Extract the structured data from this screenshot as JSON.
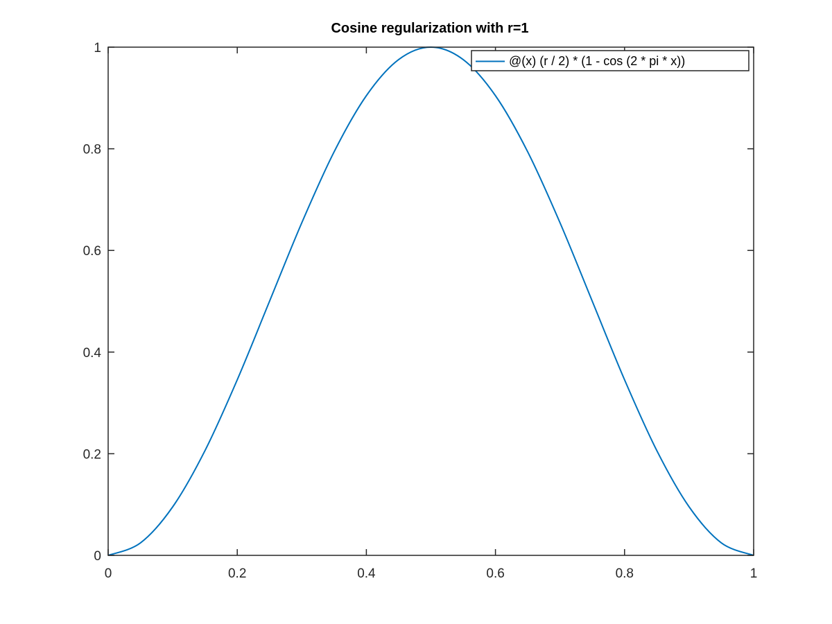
{
  "chart_data": {
    "type": "line",
    "title": "Cosine regularization with r=1",
    "xlabel": "",
    "ylabel": "",
    "xlim": [
      0,
      1
    ],
    "ylim": [
      0,
      1
    ],
    "x_ticks": [
      0,
      0.2,
      0.4,
      0.6,
      0.8,
      1
    ],
    "y_ticks": [
      0,
      0.2,
      0.4,
      0.6,
      0.8,
      1
    ],
    "x_tick_labels": [
      "0",
      "0.2",
      "0.4",
      "0.6",
      "0.8",
      "1"
    ],
    "y_tick_labels": [
      "0",
      "0.2",
      "0.4",
      "0.6",
      "0.8",
      "1"
    ],
    "grid": false,
    "legend_position": "top-right",
    "series": [
      {
        "name": "@(x) (r / 2) * (1 - cos (2 * pi * x))",
        "color": "#0072BD",
        "x": [
          0,
          0.05,
          0.1,
          0.15,
          0.2,
          0.25,
          0.3,
          0.35,
          0.4,
          0.45,
          0.5,
          0.55,
          0.6,
          0.65,
          0.7,
          0.75,
          0.8,
          0.85,
          0.9,
          0.95,
          1
        ],
        "y": [
          0,
          0.0245,
          0.0955,
          0.2061,
          0.3455,
          0.5,
          0.6545,
          0.7939,
          0.9045,
          0.9755,
          1,
          0.9755,
          0.9045,
          0.7939,
          0.6545,
          0.5,
          0.3455,
          0.2061,
          0.0955,
          0.0245,
          0
        ]
      }
    ]
  }
}
